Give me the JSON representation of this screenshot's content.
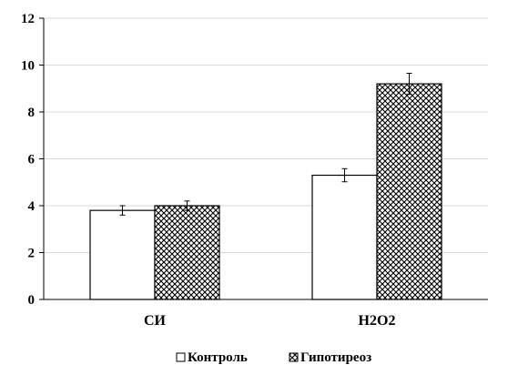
{
  "chart_data": {
    "type": "bar",
    "categories": [
      "СИ",
      "H2O2"
    ],
    "series": [
      {
        "name": "Контроль",
        "values": [
          3.8,
          5.3
        ],
        "errors": [
          0.2,
          0.28
        ],
        "fill": "solid",
        "color": "#ffffff"
      },
      {
        "name": "Гипотиреоз",
        "values": [
          4.0,
          9.2
        ],
        "errors": [
          0.2,
          0.45
        ],
        "fill": "crosshatch",
        "color": "#000000"
      }
    ],
    "ylim": [
      0,
      12
    ],
    "yticks": [
      "0",
      "2",
      "4",
      "6",
      "8",
      "10",
      "12"
    ],
    "grid": true,
    "legend": "bottom",
    "xlabel": "",
    "ylabel": "",
    "title": ""
  }
}
